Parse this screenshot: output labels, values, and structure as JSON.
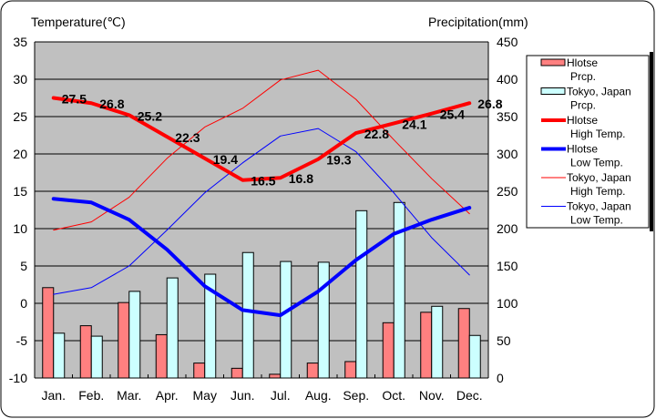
{
  "chart_data": {
    "type": "bar+line",
    "left_axis_title": "Temperature(℃)",
    "right_axis_title": "Precipitation(mm)",
    "left_ylim": [
      -10,
      35
    ],
    "left_ticks": [
      "35",
      "30",
      "25",
      "20",
      "15",
      "10",
      "5",
      "0",
      "-5",
      "-10"
    ],
    "right_ylim": [
      0,
      450
    ],
    "right_ticks": [
      "450",
      "400",
      "350",
      "300",
      "250",
      "200",
      "150",
      "100",
      "50",
      "0"
    ],
    "categories": [
      "Jan.",
      "Feb.",
      "Mar.",
      "Apr.",
      "May",
      "Jun.",
      "Jul.",
      "Aug.",
      "Sep.",
      "Oct.",
      "Nov.",
      "Dec."
    ],
    "grid": true,
    "legend_position": "right",
    "series": [
      {
        "name": "Hlotse Prcp.",
        "legend": [
          "Hlotse",
          "Prcp."
        ],
        "kind": "bar",
        "axis": "right",
        "color": "#ff8080",
        "values": [
          121,
          70,
          101,
          58,
          20,
          13,
          5,
          20,
          22,
          74,
          88,
          93
        ]
      },
      {
        "name": "Tokyo, Japan Prcp.",
        "legend": [
          "Tokyo, Japan",
          "Prcp."
        ],
        "kind": "bar",
        "axis": "right",
        "color": "#ccffff",
        "values": [
          60,
          56,
          116,
          134,
          139,
          168,
          156,
          155,
          224,
          235,
          96,
          57
        ]
      },
      {
        "name": "Hlotse High Temp.",
        "legend": [
          "Hlotse",
          "High Temp."
        ],
        "kind": "line",
        "axis": "left",
        "color": "#ff0000",
        "width": "thick",
        "values": [
          27.5,
          26.8,
          25.2,
          22.3,
          19.4,
          16.5,
          16.8,
          19.3,
          22.8,
          24.1,
          25.4,
          26.8
        ],
        "labels": [
          "27.5",
          "26.8",
          "25.2",
          "22.3",
          "19.4",
          "16.5",
          "16.8",
          "19.3",
          "22.8",
          "24.1",
          "25.4",
          "26.8"
        ]
      },
      {
        "name": "Hlotse Low Temp.",
        "legend": [
          "Hlotse",
          "Low Temp."
        ],
        "kind": "line",
        "axis": "left",
        "color": "#0000ff",
        "width": "thick",
        "values": [
          14.0,
          13.5,
          11.2,
          7.2,
          2.3,
          -0.9,
          -1.6,
          1.6,
          5.8,
          9.3,
          11.2,
          12.8
        ]
      },
      {
        "name": "Tokyo, Japan High Temp.",
        "legend": [
          "Tokyo, Japan",
          "High Temp."
        ],
        "kind": "line",
        "axis": "left",
        "color": "#ff0000",
        "width": "thin",
        "values": [
          9.8,
          10.9,
          14.2,
          19.4,
          23.6,
          26.1,
          29.9,
          31.2,
          27.3,
          21.9,
          16.7,
          12.0
        ]
      },
      {
        "name": "Tokyo, Japan Low Temp.",
        "legend": [
          "Tokyo, Japan",
          "Low Temp."
        ],
        "kind": "line",
        "axis": "left",
        "color": "#0000ff",
        "width": "thin",
        "values": [
          1.2,
          2.1,
          5.0,
          9.8,
          14.8,
          18.8,
          22.4,
          23.4,
          20.3,
          14.8,
          8.8,
          3.8
        ]
      }
    ]
  }
}
